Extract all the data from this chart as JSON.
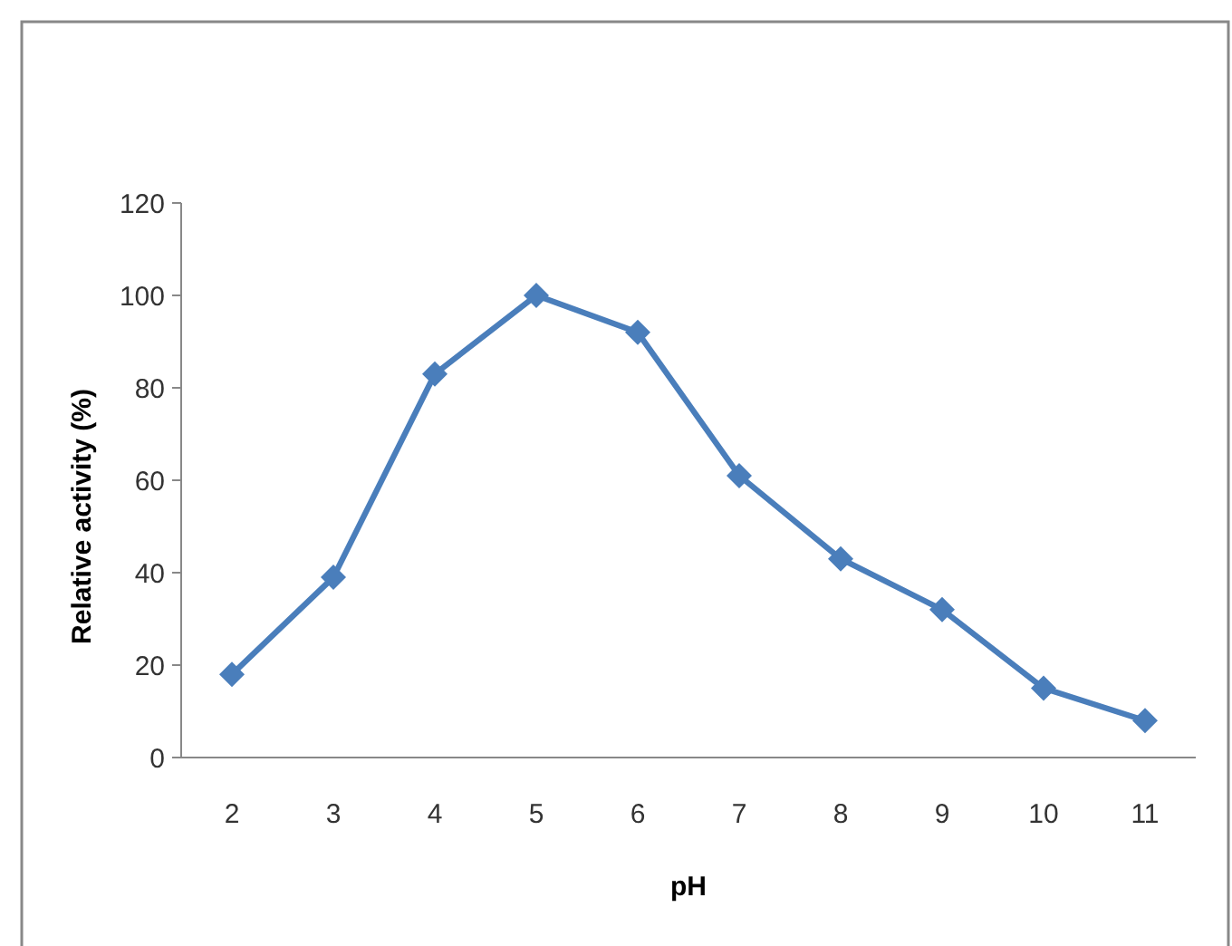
{
  "chart_data": {
    "type": "line",
    "xlabel": "pH",
    "ylabel": "Relative activity (%)",
    "categories": [
      "2",
      "3",
      "4",
      "5",
      "6",
      "7",
      "8",
      "9",
      "10",
      "11"
    ],
    "series": [
      {
        "color": "#4a7ebb",
        "values": [
          18,
          39,
          83,
          100,
          92,
          61,
          43,
          32,
          15,
          8
        ]
      }
    ],
    "ylim": [
      0,
      120
    ],
    "yticks": [
      0,
      20,
      40,
      60,
      80,
      100,
      120
    ],
    "grid": false,
    "marker": "diamond",
    "line_style": "solid"
  }
}
